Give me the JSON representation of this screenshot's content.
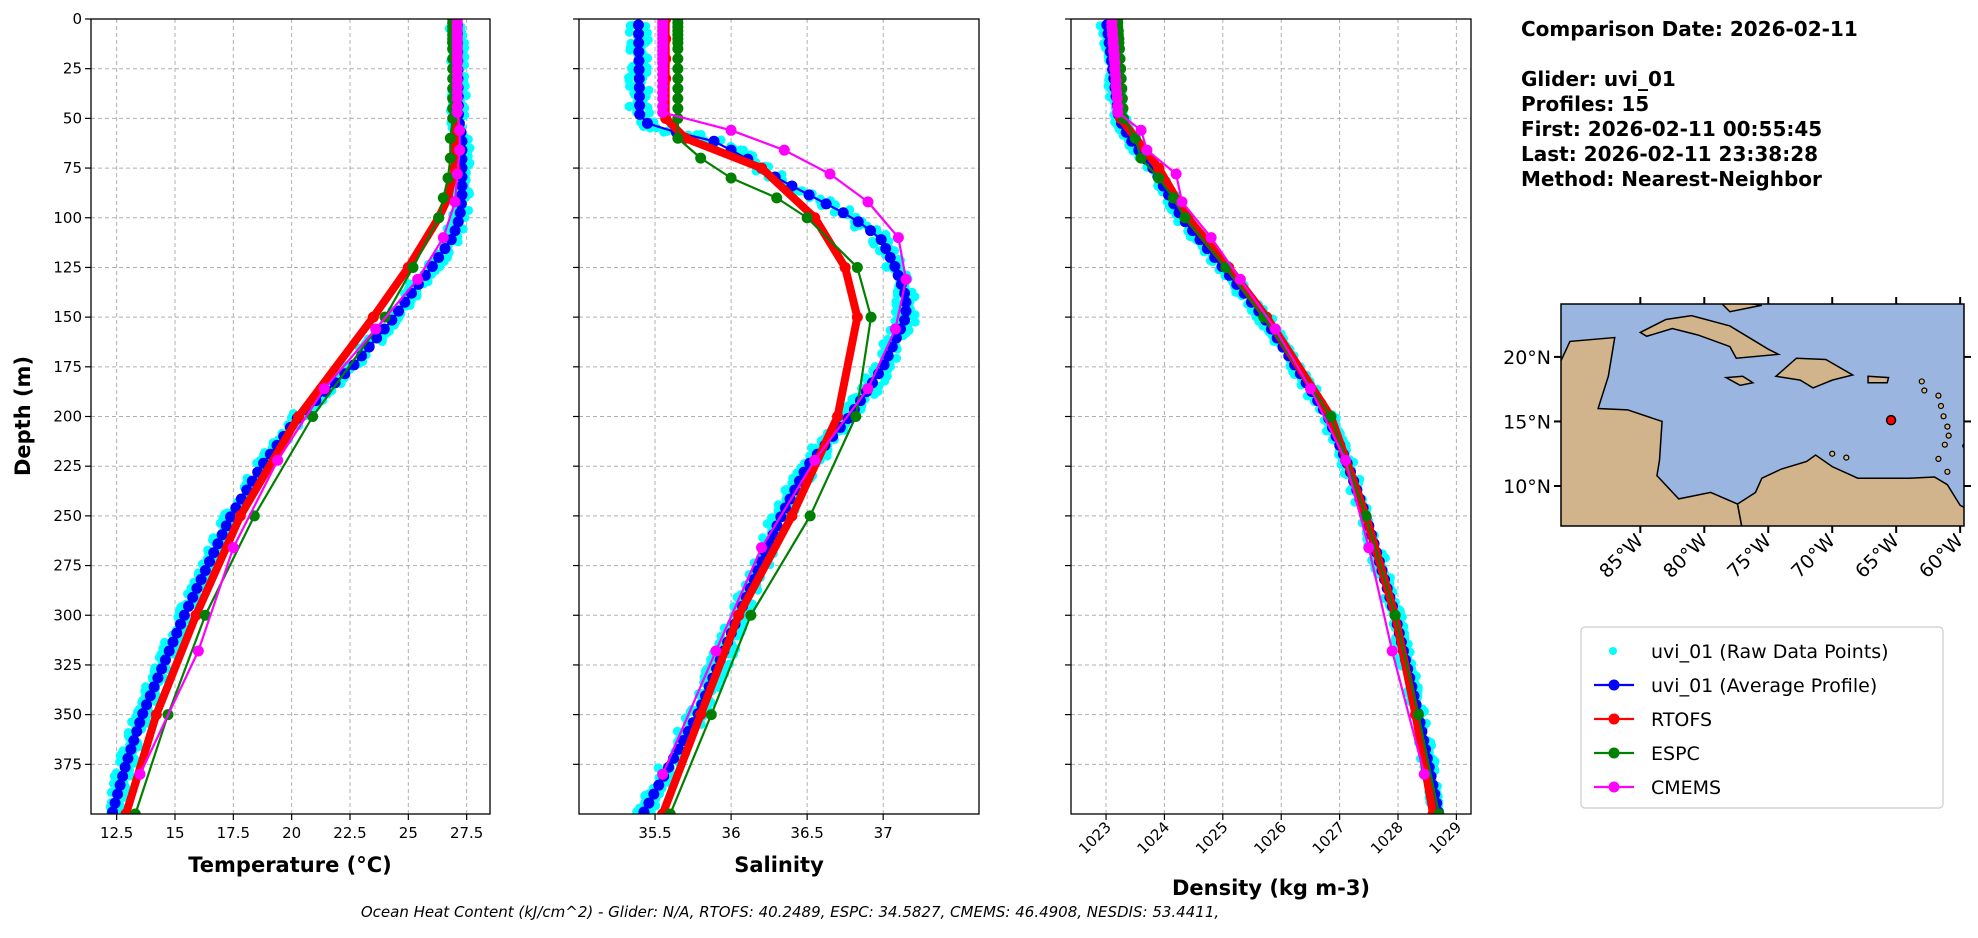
{
  "footer": "Ocean Heat Content (kJ/cm^2) - Glider: N/A,  RTOFS: 40.2489,  ESPC: 34.5827,  CMEMS: 46.4908,  NESDIS: 53.4411,",
  "info": {
    "lines": [
      "Comparison Date: 2026-02-11",
      "",
      "Glider: uvi_01",
      "Profiles: 15",
      "First: 2026-02-11 00:55:45",
      "Last: 2026-02-11 23:38:28",
      "Method: Nearest-Neighbor"
    ]
  },
  "legend": {
    "placement": "lower-right",
    "entries": [
      {
        "label": "uvi_01 (Raw Data Points)",
        "color": "#00ffff",
        "style": "dot"
      },
      {
        "label": "uvi_01 (Average Profile)",
        "color": "#0000ff",
        "style": "line-marker"
      },
      {
        "label": "RTOFS",
        "color": "#ff0000",
        "style": "line-marker"
      },
      {
        "label": "ESPC",
        "color": "#008000",
        "style": "line-marker"
      },
      {
        "label": "CMEMS",
        "color": "#ff00ff",
        "style": "line-marker"
      }
    ]
  },
  "map": {
    "lon_range": [
      -91.2,
      -59.7
    ],
    "lat_range": [
      6.9,
      24.1
    ],
    "lat_ticks": [
      {
        "v": 10,
        "label": "10°N"
      },
      {
        "v": 15,
        "label": "15°N"
      },
      {
        "v": 20,
        "label": "20°N"
      }
    ],
    "lon_ticks": [
      {
        "v": -85,
        "label": "85°W"
      },
      {
        "v": -80,
        "label": "80°W"
      },
      {
        "v": -75,
        "label": "75°W"
      },
      {
        "v": -70,
        "label": "70°W"
      },
      {
        "v": -65,
        "label": "65°W"
      },
      {
        "v": -60,
        "label": "60°W"
      }
    ],
    "glider_position": {
      "lon": -65.4,
      "lat": 15.1
    },
    "ocean_color": "#9ab6e0",
    "land_color": "#d2b48c"
  },
  "chart_data": [
    {
      "type": "line",
      "title": "",
      "xlabel": "Temperature (°C)",
      "ylabel": "Depth (m)",
      "xlim": [
        11.4,
        28.5
      ],
      "ylim": [
        400,
        0
      ],
      "xticks": [
        12.5,
        15.0,
        17.5,
        20.0,
        22.5,
        25.0,
        27.5
      ],
      "yticks": [
        0,
        25,
        50,
        75,
        100,
        125,
        150,
        175,
        200,
        225,
        250,
        275,
        300,
        325,
        350,
        375
      ],
      "grid": true,
      "raw_spread": 0.35,
      "series": [
        {
          "name": "uvi_01 (Average Profile)",
          "depth": [
            0,
            50,
            60,
            75,
            90,
            100,
            110,
            125,
            140,
            150,
            175,
            200,
            225,
            250,
            275,
            300,
            325,
            350,
            375,
            400
          ],
          "values": [
            27.1,
            27.15,
            27.3,
            27.3,
            27.3,
            27.2,
            26.9,
            26.0,
            25.0,
            24.4,
            22.6,
            20.3,
            18.7,
            17.4,
            16.4,
            15.4,
            14.5,
            13.6,
            12.9,
            12.3
          ]
        },
        {
          "name": "RTOFS",
          "depth": [
            0,
            10,
            20,
            30,
            50,
            75,
            90,
            100,
            125,
            150,
            200,
            250,
            300,
            350,
            400
          ],
          "values": [
            27.0,
            27.0,
            27.0,
            27.0,
            27.0,
            27.0,
            26.7,
            26.3,
            25.0,
            23.5,
            20.3,
            17.8,
            15.9,
            14.2,
            12.9
          ]
        },
        {
          "name": "ESPC",
          "depth": [
            0,
            2,
            4,
            6,
            8,
            10,
            12,
            15,
            20,
            25,
            30,
            35,
            40,
            45,
            50,
            60,
            70,
            80,
            90,
            100,
            125,
            150,
            200,
            250,
            300,
            350,
            400
          ],
          "values": [
            26.9,
            26.9,
            26.9,
            26.9,
            26.9,
            26.9,
            26.9,
            26.9,
            26.9,
            26.9,
            26.9,
            26.9,
            26.9,
            26.9,
            26.9,
            26.8,
            26.8,
            26.7,
            26.5,
            26.3,
            25.2,
            24.0,
            20.9,
            18.4,
            16.3,
            14.7,
            13.3
          ]
        },
        {
          "name": "CMEMS",
          "depth": [
            0,
            2,
            4,
            6,
            8,
            10,
            12,
            14,
            16,
            18,
            20,
            22,
            25,
            28,
            31,
            34,
            37,
            40,
            44,
            47,
            56,
            66,
            78,
            92,
            110,
            131,
            156,
            186,
            222,
            266,
            318,
            380
          ],
          "values": [
            27.1,
            27.1,
            27.1,
            27.1,
            27.1,
            27.1,
            27.1,
            27.1,
            27.1,
            27.1,
            27.1,
            27.1,
            27.1,
            27.1,
            27.1,
            27.1,
            27.1,
            27.1,
            27.1,
            27.1,
            27.2,
            27.2,
            27.1,
            27.0,
            26.5,
            25.4,
            23.6,
            21.4,
            19.4,
            17.5,
            16.0,
            13.5
          ]
        }
      ]
    },
    {
      "type": "line",
      "title": "",
      "xlabel": "Salinity",
      "ylabel": "",
      "xlim": [
        35.0,
        37.63
      ],
      "ylim": [
        400,
        0
      ],
      "xticks": [
        35.5,
        36.0,
        36.5,
        37.0
      ],
      "yticks": [
        0,
        25,
        50,
        75,
        100,
        125,
        150,
        175,
        200,
        225,
        250,
        275,
        300,
        325,
        350,
        375
      ],
      "grid": true,
      "raw_spread": 0.07,
      "series": [
        {
          "name": "uvi_01 (Average Profile)",
          "depth": [
            0,
            50,
            55,
            60,
            70,
            80,
            90,
            100,
            110,
            125,
            140,
            150,
            175,
            200,
            225,
            250,
            300,
            350,
            400
          ],
          "values": [
            35.39,
            35.4,
            35.5,
            35.85,
            36.1,
            36.3,
            36.55,
            36.8,
            36.98,
            37.08,
            37.15,
            37.15,
            37.0,
            36.78,
            36.5,
            36.33,
            36.05,
            35.78,
            35.42
          ]
        },
        {
          "name": "RTOFS",
          "depth": [
            0,
            10,
            20,
            30,
            50,
            60,
            75,
            100,
            125,
            150,
            200,
            250,
            300,
            350,
            400
          ],
          "values": [
            35.57,
            35.57,
            35.57,
            35.57,
            35.57,
            35.7,
            36.2,
            36.55,
            36.75,
            36.83,
            36.7,
            36.4,
            36.05,
            35.8,
            35.55
          ]
        },
        {
          "name": "ESPC",
          "depth": [
            0,
            2,
            4,
            6,
            8,
            10,
            12,
            15,
            20,
            25,
            30,
            35,
            40,
            45,
            50,
            60,
            70,
            80,
            90,
            100,
            125,
            150,
            200,
            250,
            300,
            350,
            400
          ],
          "values": [
            35.65,
            35.65,
            35.65,
            35.65,
            35.65,
            35.65,
            35.65,
            35.65,
            35.65,
            35.65,
            35.65,
            35.65,
            35.65,
            35.65,
            35.65,
            35.65,
            35.8,
            36.0,
            36.3,
            36.5,
            36.83,
            36.92,
            36.82,
            36.52,
            36.13,
            35.87,
            35.6
          ]
        },
        {
          "name": "CMEMS",
          "depth": [
            0,
            2,
            4,
            6,
            8,
            10,
            12,
            14,
            16,
            18,
            20,
            22,
            25,
            28,
            31,
            34,
            37,
            40,
            44,
            47,
            56,
            66,
            78,
            92,
            110,
            131,
            156,
            186,
            222,
            266,
            318,
            380
          ],
          "values": [
            35.55,
            35.55,
            35.55,
            35.55,
            35.55,
            35.55,
            35.55,
            35.55,
            35.55,
            35.55,
            35.55,
            35.55,
            35.55,
            35.55,
            35.55,
            35.55,
            35.55,
            35.55,
            35.55,
            35.55,
            36.0,
            36.35,
            36.65,
            36.9,
            37.1,
            37.15,
            37.08,
            36.9,
            36.55,
            36.2,
            35.9,
            35.55
          ]
        }
      ]
    },
    {
      "type": "line",
      "title": "",
      "xlabel": "Density (kg m-3)",
      "ylabel": "",
      "xlim": [
        1022.4,
        1029.25
      ],
      "ylim": [
        400,
        0
      ],
      "xticks": [
        1023,
        1024,
        1025,
        1026,
        1027,
        1028,
        1029
      ],
      "yticks": [
        0,
        25,
        50,
        75,
        100,
        125,
        150,
        175,
        200,
        225,
        250,
        275,
        300,
        325,
        350,
        375
      ],
      "grid": true,
      "raw_spread": 0.12,
      "series": [
        {
          "name": "uvi_01 (Average Profile)",
          "depth": [
            0,
            50,
            60,
            75,
            100,
            125,
            150,
            175,
            200,
            225,
            250,
            300,
            350,
            400
          ],
          "values": [
            1023.0,
            1023.22,
            1023.4,
            1023.8,
            1024.3,
            1025.0,
            1025.7,
            1026.25,
            1026.8,
            1027.15,
            1027.45,
            1027.95,
            1028.35,
            1028.7
          ]
        },
        {
          "name": "RTOFS",
          "depth": [
            0,
            10,
            20,
            30,
            50,
            75,
            100,
            125,
            150,
            200,
            250,
            300,
            350,
            400
          ],
          "values": [
            1023.1,
            1023.12,
            1023.15,
            1023.18,
            1023.25,
            1023.9,
            1024.4,
            1025.1,
            1025.75,
            1026.85,
            1027.45,
            1027.95,
            1028.3,
            1028.6
          ]
        },
        {
          "name": "ESPC",
          "depth": [
            0,
            2,
            4,
            6,
            8,
            10,
            12,
            15,
            20,
            25,
            30,
            35,
            40,
            45,
            50,
            60,
            70,
            80,
            90,
            100,
            125,
            150,
            200,
            250,
            300,
            350,
            400
          ],
          "values": [
            1023.2,
            1023.2,
            1023.2,
            1023.21,
            1023.21,
            1023.22,
            1023.22,
            1023.23,
            1023.24,
            1023.25,
            1023.26,
            1023.27,
            1023.28,
            1023.29,
            1023.3,
            1023.5,
            1023.6,
            1023.9,
            1024.15,
            1024.35,
            1025.05,
            1025.7,
            1026.85,
            1027.45,
            1027.95,
            1028.35,
            1028.7
          ]
        },
        {
          "name": "CMEMS",
          "depth": [
            0,
            2,
            4,
            6,
            8,
            10,
            12,
            14,
            16,
            18,
            20,
            22,
            25,
            28,
            31,
            34,
            37,
            40,
            44,
            47,
            56,
            66,
            78,
            92,
            110,
            131,
            156,
            186,
            222,
            266,
            318,
            380
          ],
          "values": [
            1023.1,
            1023.1,
            1023.1,
            1023.11,
            1023.11,
            1023.12,
            1023.12,
            1023.13,
            1023.13,
            1023.14,
            1023.14,
            1023.15,
            1023.15,
            1023.16,
            1023.17,
            1023.17,
            1023.18,
            1023.19,
            1023.2,
            1023.2,
            1023.6,
            1023.7,
            1024.2,
            1024.3,
            1024.8,
            1025.3,
            1025.9,
            1026.5,
            1027.1,
            1027.5,
            1027.9,
            1028.45
          ]
        }
      ]
    }
  ]
}
